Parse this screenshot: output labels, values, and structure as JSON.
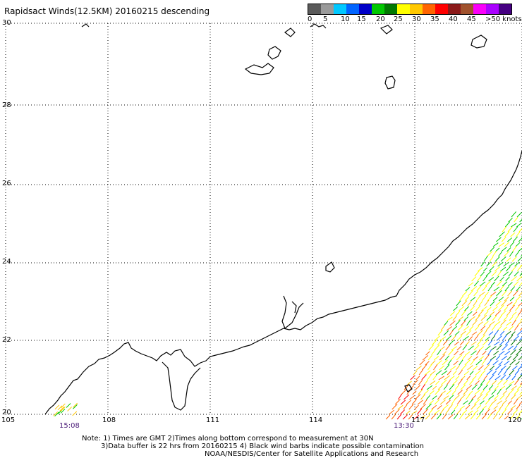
{
  "title": "Rapidsact Winds(12.5KM) 20160215 descending",
  "legend": {
    "colors": [
      "#5a5a5a",
      "#9a9a9a",
      "#00c8ff",
      "#0064ff",
      "#0000c8",
      "#00c800",
      "#007800",
      "#ffff00",
      "#ffc800",
      "#ff6400",
      "#ff0000",
      "#8b1a1a",
      "#a0522d",
      "#fa00fa",
      "#aa00ff",
      "#460082"
    ],
    "labels": [
      "0",
      "5",
      "10",
      "15",
      "20",
      "25",
      "30",
      "35",
      "40",
      "45",
      ">50 knots"
    ]
  },
  "axes": {
    "y_labels": [
      "30",
      "28",
      "26",
      "24",
      "22",
      "20"
    ],
    "x_labels": [
      "105",
      "108",
      "111",
      "114",
      "117",
      "120"
    ],
    "time_labels": [
      "15:08",
      "13:30"
    ]
  },
  "notes": {
    "line1": "Note: 1) Times are GMT 2)Times along bottom correspond to measurement at 30N",
    "line2": "3)Data buffer is 22 hrs from 20160215 4) Black wind barbs indicate possible contamination",
    "line3": "NOAA/NESDIS/Center for Satellite Applications and Research"
  }
}
